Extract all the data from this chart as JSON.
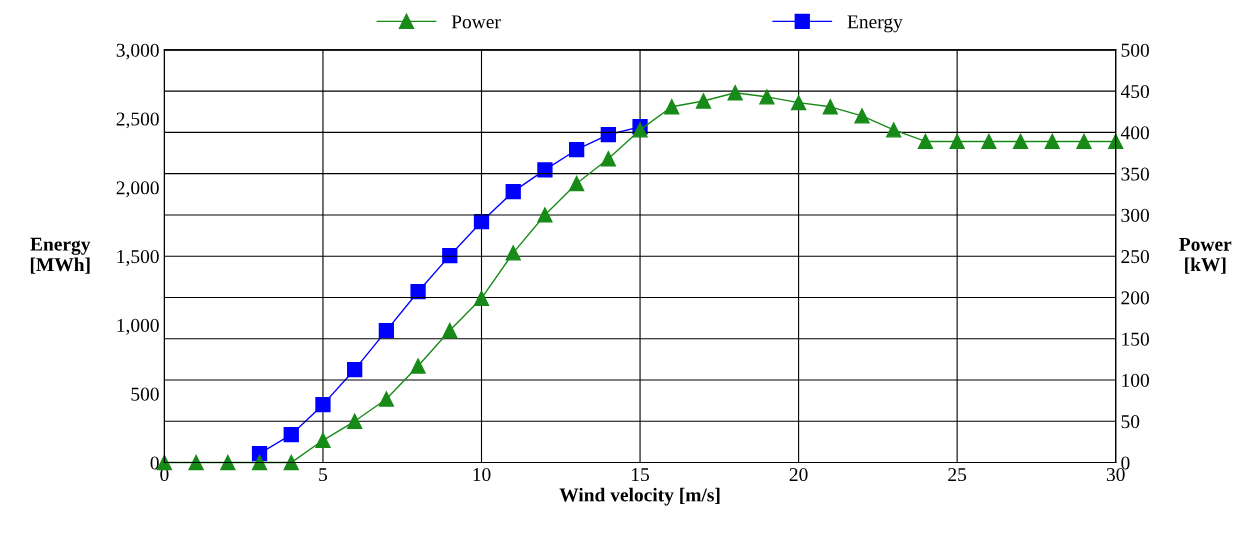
{
  "chart_data": {
    "type": "line",
    "xlabel": "Wind velocity [m/s]",
    "ylabel": "Energy\n[MWh]",
    "y2label": "Power\n[kW]",
    "xlim": [
      0,
      30
    ],
    "xticks": [
      0,
      5,
      10,
      15,
      20,
      25,
      30
    ],
    "ylim": [
      0,
      3000
    ],
    "yticks": [
      {
        "value": 0,
        "label": "0"
      },
      {
        "value": 500,
        "label": "500"
      },
      {
        "value": 1000,
        "label": "1,000"
      },
      {
        "value": 1500,
        "label": "1,500"
      },
      {
        "value": 2000,
        "label": "2,000"
      },
      {
        "value": 2500,
        "label": "2,500"
      },
      {
        "value": 3000,
        "label": "3,000"
      }
    ],
    "y2lim": [
      0,
      500
    ],
    "y2ticks": [
      0,
      50,
      100,
      150,
      200,
      250,
      300,
      350,
      400,
      450,
      500
    ],
    "grid": true,
    "legend": "top",
    "series": [
      {
        "name": "Power",
        "color": "#178a17",
        "marker": "triangle",
        "axis": "y2",
        "x": [
          0,
          1,
          2,
          3,
          4,
          5,
          6,
          7,
          8,
          9,
          10,
          11,
          12,
          13,
          14,
          15,
          16,
          17,
          18,
          19,
          20,
          21,
          22,
          23,
          24,
          25,
          26,
          27,
          28,
          29,
          30
        ],
        "values": [
          0,
          0,
          0,
          0,
          0,
          27,
          50,
          77,
          117,
          160,
          199,
          254,
          300,
          338,
          368,
          403,
          431,
          438,
          448,
          443,
          436,
          431,
          420,
          403,
          389,
          389,
          389,
          389,
          389,
          389,
          389
        ]
      },
      {
        "name": "Energy",
        "color": "#0000ff",
        "marker": "square",
        "x": [
          3,
          4,
          5,
          6,
          7,
          8,
          9,
          10,
          11,
          12,
          13,
          14,
          15
        ],
        "values": [
          65,
          203,
          421,
          676,
          959,
          1242,
          1504,
          1751,
          1969,
          2128,
          2274,
          2383,
          2441
        ]
      }
    ]
  }
}
